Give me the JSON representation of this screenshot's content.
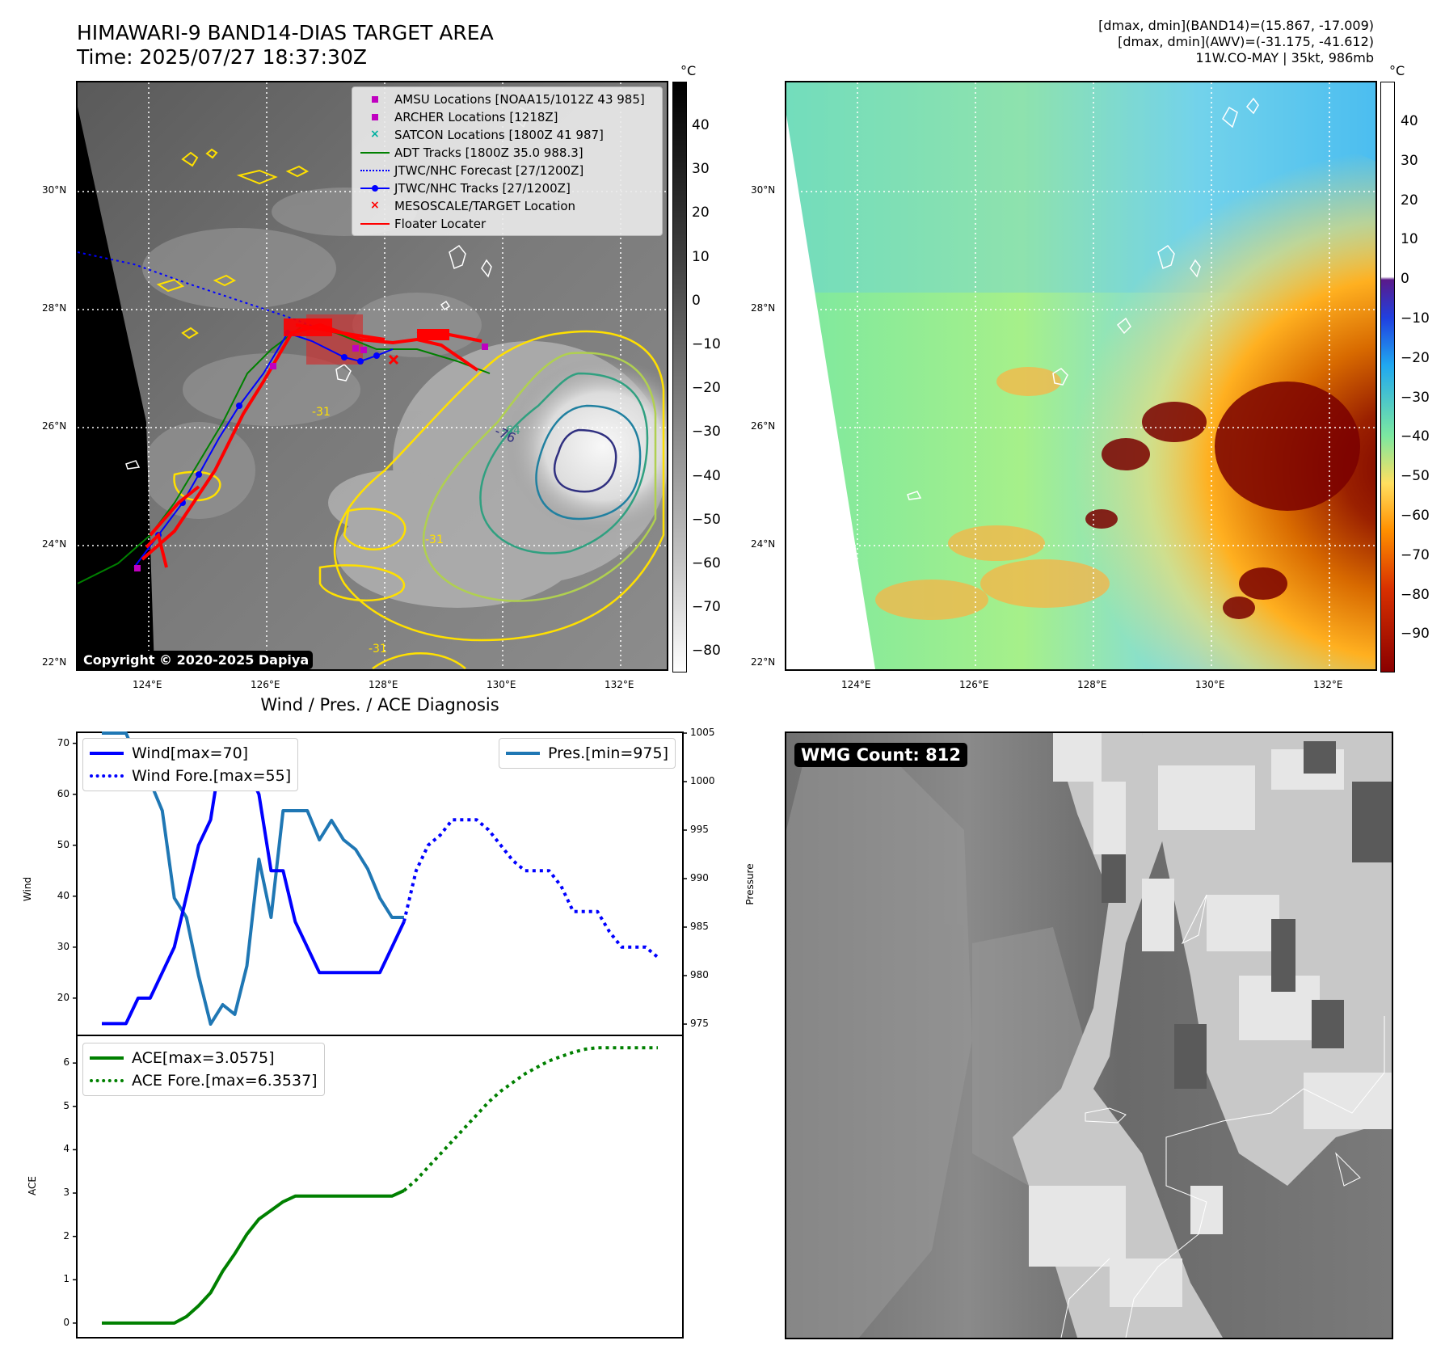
{
  "header": {
    "title_line1": "HIMAWARI-9 BAND14-DIAS TARGET AREA",
    "title_line2": "Time: 2025/07/27 18:37:30Z",
    "info_line1": "[dmax, dmin](BAND14)=(15.867, -17.009)",
    "info_line2": "[dmax, dmin](AWV)=(-31.175, -41.612)",
    "info_line3": "11W.CO-MAY | 35kt, 986mb"
  },
  "map": {
    "lat_labels": [
      "30°N",
      "28°N",
      "26°N",
      "24°N",
      "22°N"
    ],
    "lon_labels": [
      "124°E",
      "126°E",
      "128°E",
      "130°E",
      "132°E"
    ],
    "colorbar_unit": "°C",
    "colorbar_left_ticks": [
      "40",
      "30",
      "20",
      "10",
      "0",
      "−10",
      "−20",
      "−30",
      "−40",
      "−50",
      "−60",
      "−70",
      "−80"
    ],
    "colorbar_right_ticks": [
      "40",
      "30",
      "20",
      "10",
      "0",
      "−10",
      "−20",
      "−30",
      "−40",
      "−50",
      "−60",
      "−70",
      "−80",
      "−90"
    ],
    "contour_labels": [
      "-76",
      "-64",
      "-31",
      "-31",
      "-31"
    ],
    "copyright": "Copyright © 2020-2025 Dapiya",
    "legend": [
      {
        "label": "AMSU Locations [NOAA15/1012Z 43 985]",
        "symbol": "square",
        "color": "#c000c0"
      },
      {
        "label": "ARCHER Locations [1218Z]",
        "symbol": "square",
        "color": "#c000c0"
      },
      {
        "label": "SATCON Locations [1800Z 41 987]",
        "symbol": "x",
        "color": "#00b0a0"
      },
      {
        "label": "ADT Tracks [1800Z 35.0 988.3]",
        "symbol": "line",
        "color": "#008000"
      },
      {
        "label": "JTWC/NHC Forecast [27/1200Z]",
        "symbol": "dotted",
        "color": "#0000ff"
      },
      {
        "label": "JTWC/NHC Tracks [27/1200Z]",
        "symbol": "line-dot",
        "color": "#0000ff"
      },
      {
        "label": "MESOSCALE/TARGET Location",
        "symbol": "x",
        "color": "#ff0000"
      },
      {
        "label": "Floater Locater",
        "symbol": "line",
        "color": "#ff0000"
      }
    ]
  },
  "diagnosis": {
    "title": "Wind / Pres. / ACE Diagnosis",
    "wind_ylabel": "Wind",
    "pres_ylabel": "Pressure",
    "ace_ylabel": "ACE",
    "legend_wind": "Wind[max=70]",
    "legend_wind_fore": "Wind Fore.[max=55]",
    "legend_pres": "Pres.[min=975]",
    "legend_ace": "ACE[max=3.0575]",
    "legend_ace_fore": "ACE Fore.[max=6.3537]",
    "wind_ticks": [
      "70",
      "60",
      "50",
      "40",
      "30",
      "20"
    ],
    "pres_ticks": [
      "1005",
      "1000",
      "995",
      "990",
      "985",
      "980",
      "975"
    ],
    "ace_ticks": [
      "6",
      "5",
      "4",
      "3",
      "2",
      "1",
      "0"
    ]
  },
  "wmg": {
    "badge": "WMG Count: 812"
  },
  "chart_data": [
    {
      "type": "line",
      "title": "Wind / Pres. / ACE Diagnosis",
      "ylabel": "Wind",
      "ylim": [
        13,
        72
      ],
      "series": [
        {
          "name": "Wind[max=70]",
          "color": "#0000ff",
          "style": "solid",
          "x": [
            0,
            1,
            2,
            3,
            4,
            5,
            6,
            7,
            8,
            9,
            10,
            11,
            12,
            13,
            14,
            15,
            16,
            17,
            18,
            19,
            20,
            21,
            22,
            23,
            24,
            25
          ],
          "values": [
            15,
            15,
            15,
            20,
            20,
            25,
            30,
            40,
            50,
            55,
            70,
            65,
            65,
            60,
            45,
            45,
            35,
            30,
            25,
            25,
            25,
            25,
            25,
            25,
            30,
            35
          ]
        },
        {
          "name": "Wind Fore.[max=55]",
          "color": "#0000ff",
          "style": "dotted",
          "x": [
            25,
            26,
            27,
            28,
            29,
            30,
            31,
            32,
            33,
            34,
            35,
            36,
            37,
            38,
            39,
            40,
            41,
            42,
            43,
            44,
            45,
            46
          ],
          "values": [
            35,
            45,
            50,
            52,
            55,
            55,
            55,
            53,
            50,
            47,
            45,
            45,
            45,
            42,
            37,
            37,
            37,
            33,
            30,
            30,
            30,
            28
          ]
        }
      ]
    },
    {
      "type": "line",
      "ylabel": "Pressure",
      "ylim": [
        974,
        1005
      ],
      "series": [
        {
          "name": "Pres.[min=975]",
          "color": "#1f77b4",
          "style": "solid",
          "x": [
            0,
            1,
            2,
            3,
            4,
            5,
            6,
            7,
            8,
            9,
            10,
            11,
            12,
            13,
            14,
            15,
            16,
            17,
            18,
            19,
            20,
            21,
            22,
            23,
            24,
            25
          ],
          "values": [
            1005,
            1005,
            1005,
            1002,
            1000,
            997,
            988,
            986,
            980,
            975,
            977,
            976,
            981,
            992,
            986,
            997,
            997,
            997,
            994,
            996,
            994,
            993,
            991,
            988,
            986,
            986
          ]
        }
      ]
    },
    {
      "type": "line",
      "ylabel": "ACE",
      "ylim": [
        -0.3,
        6.6
      ],
      "series": [
        {
          "name": "ACE[max=3.0575]",
          "color": "#008000",
          "style": "solid",
          "x": [
            0,
            1,
            2,
            3,
            4,
            5,
            6,
            7,
            8,
            9,
            10,
            11,
            12,
            13,
            14,
            15,
            16,
            17,
            18,
            19,
            20,
            21,
            22,
            23,
            24,
            25
          ],
          "values": [
            0,
            0,
            0,
            0,
            0,
            0,
            0,
            0.15,
            0.4,
            0.7,
            1.2,
            1.6,
            2.05,
            2.4,
            2.6,
            2.8,
            2.93,
            2.93,
            2.93,
            2.93,
            2.93,
            2.93,
            2.93,
            2.93,
            2.93,
            3.0575
          ]
        },
        {
          "name": "ACE Fore.[max=6.3537]",
          "color": "#008000",
          "style": "dotted",
          "x": [
            25,
            26,
            27,
            28,
            29,
            30,
            31,
            32,
            33,
            34,
            35,
            36,
            37,
            38,
            39,
            40,
            41,
            42,
            43,
            44,
            45,
            46
          ],
          "values": [
            3.0575,
            3.3,
            3.6,
            3.9,
            4.2,
            4.5,
            4.8,
            5.1,
            5.35,
            5.55,
            5.75,
            5.9,
            6.05,
            6.15,
            6.25,
            6.32,
            6.3537,
            6.3537,
            6.3537,
            6.3537,
            6.3537,
            6.3537
          ]
        }
      ]
    }
  ]
}
